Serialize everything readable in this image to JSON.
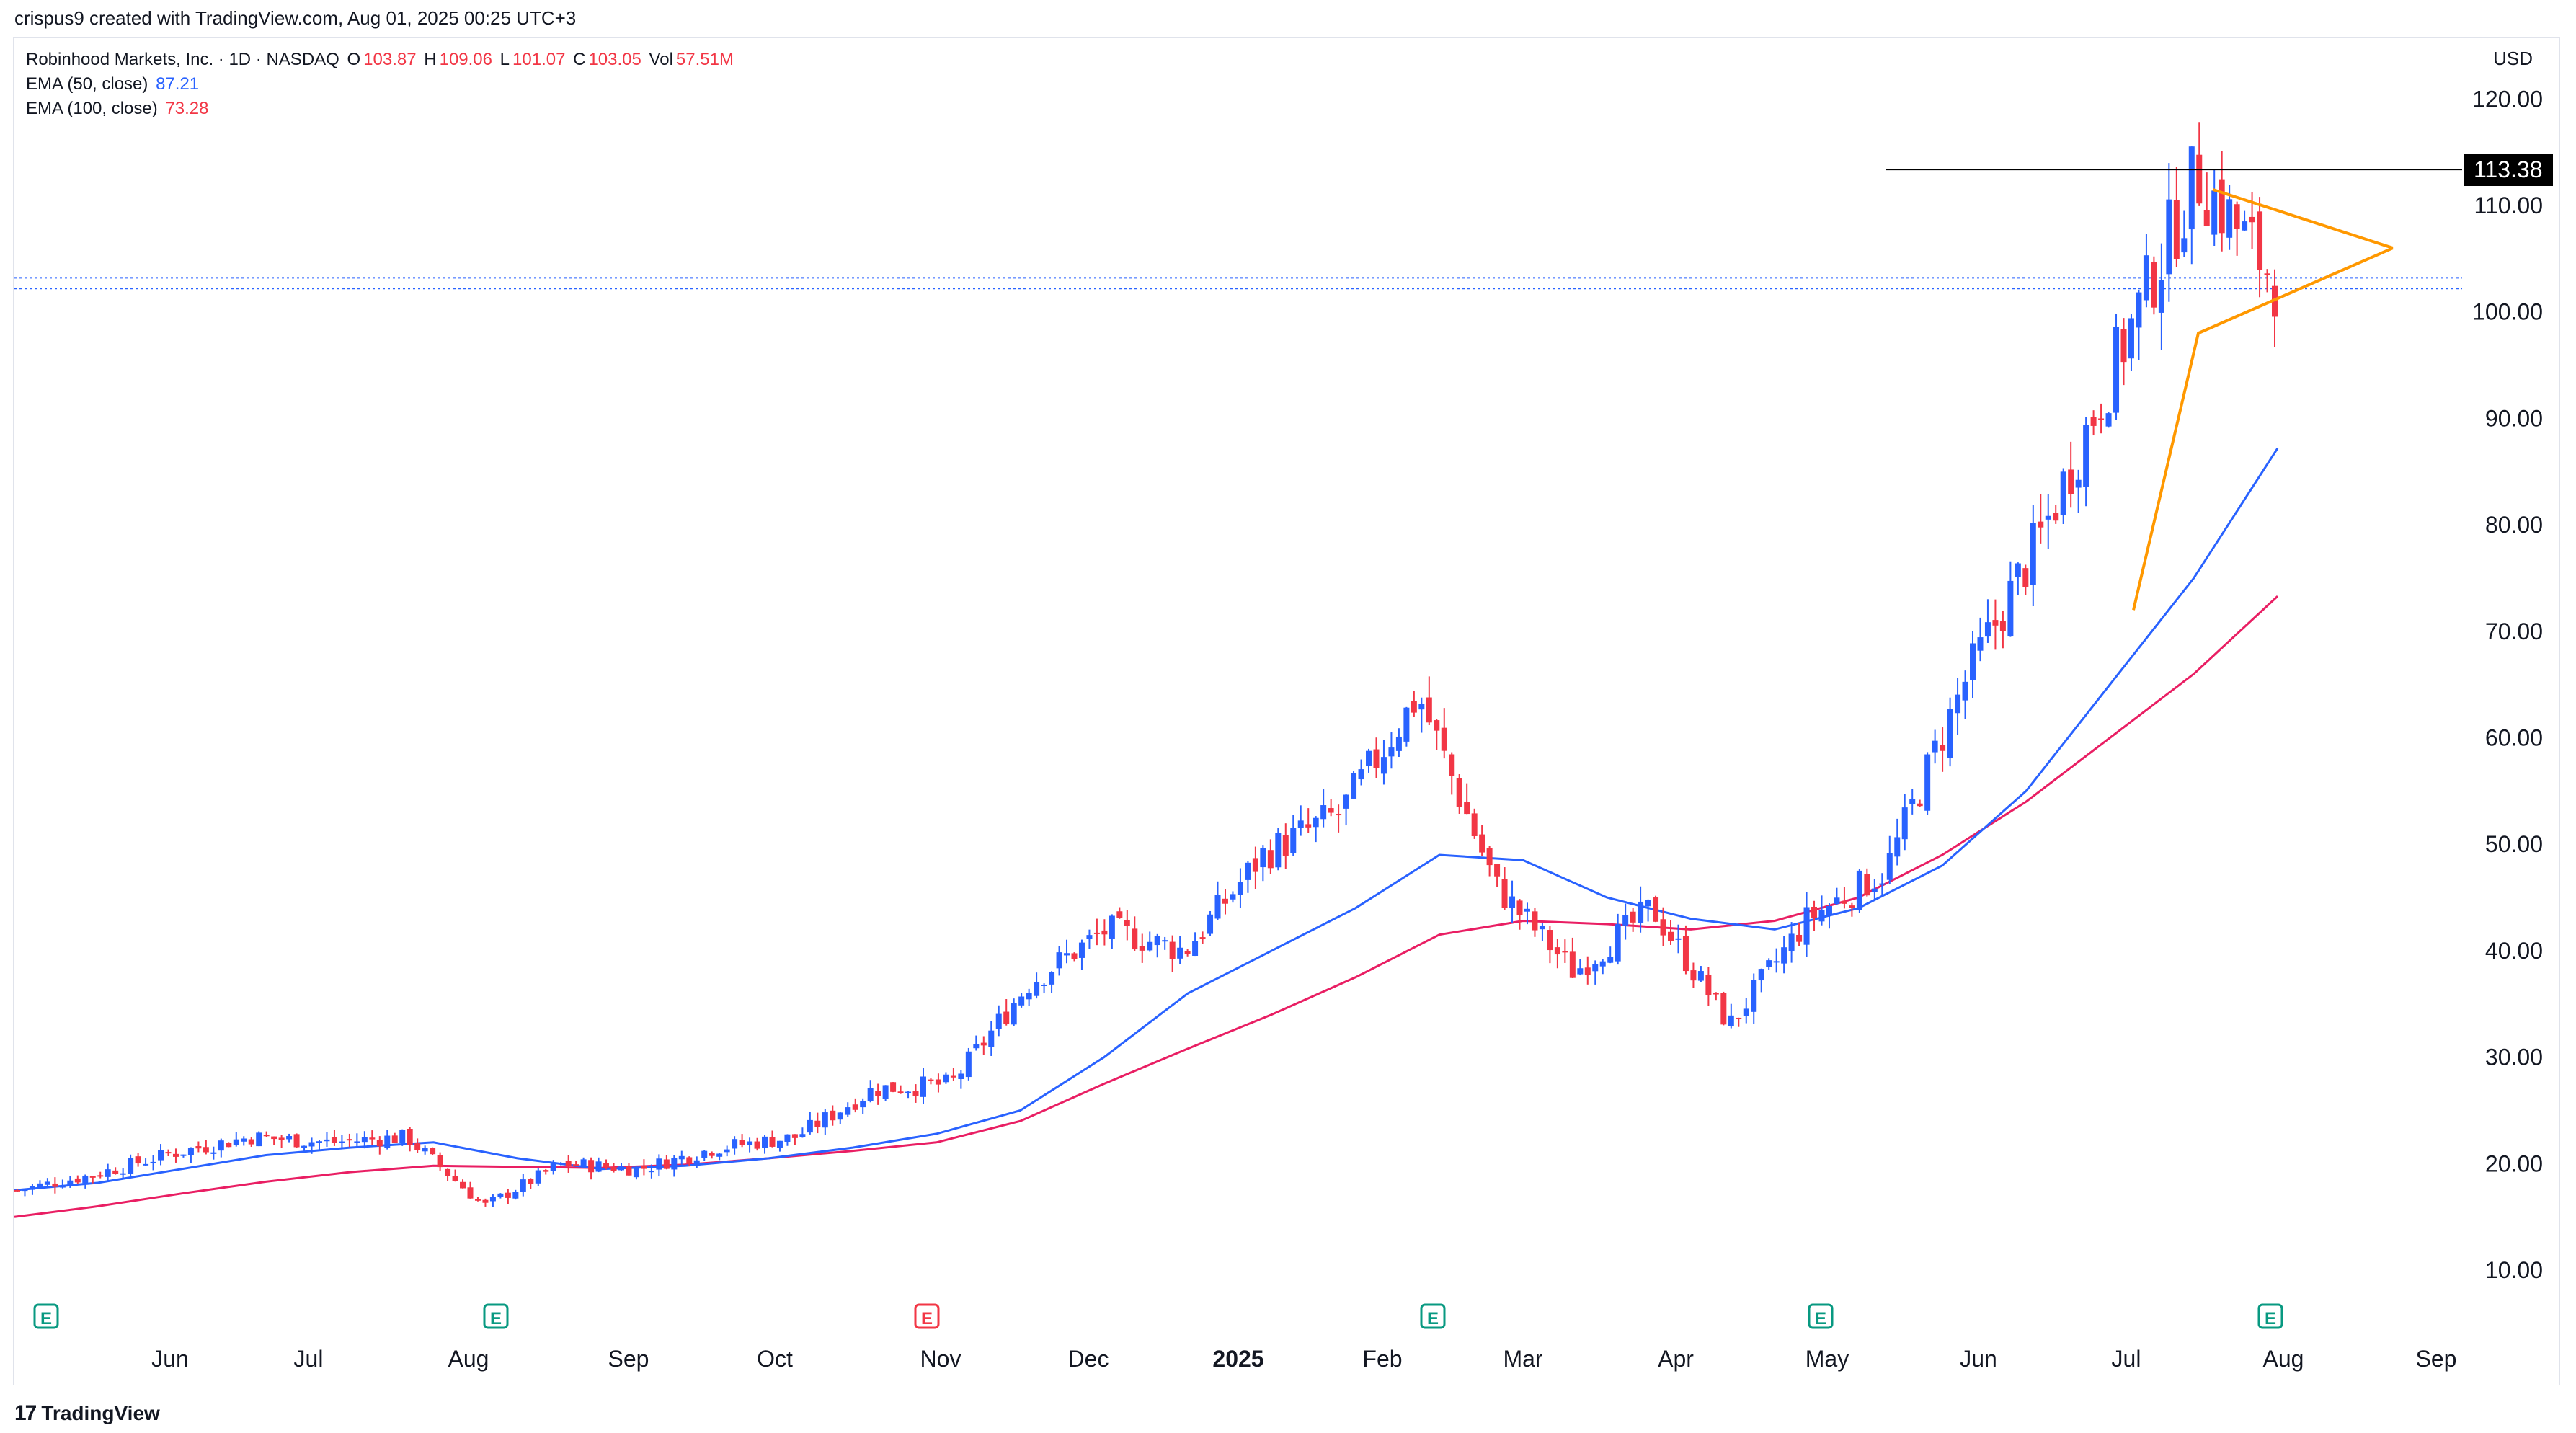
{
  "header": {
    "attribution": "crispus9 created with TradingView.com, Aug 01, 2025 00:25 UTC+3"
  },
  "legend": {
    "symbol": "Robinhood Markets, Inc. · 1D · NASDAQ",
    "o_label": "O",
    "o_value": "103.87",
    "h_label": "H",
    "h_value": "109.06",
    "l_label": "L",
    "l_value": "101.07",
    "c_label": "C",
    "c_value": "103.05",
    "vol_label": "Vol",
    "vol_value": "57.51M",
    "ema50_label": "EMA (50, close)",
    "ema50_value": "87.21",
    "ema100_label": "EMA (100, close)",
    "ema100_value": "73.28"
  },
  "currency": "USD",
  "resistance_label": "113.38",
  "footer": {
    "brand": "TradingView"
  },
  "colors": {
    "up": "#2962ff",
    "down": "#f23645",
    "ema50": "#2962ff",
    "ema100": "#e91e63",
    "pattern": "#ff9800",
    "resistance": "#000000"
  },
  "chart_data": {
    "type": "candlestick",
    "symbol": "HOOD",
    "ylim": [
      5,
      125
    ],
    "y_ticks": [
      10,
      20,
      30,
      40,
      50,
      60,
      70,
      80,
      90,
      100,
      110,
      120
    ],
    "x_ticks": [
      "Jun",
      "Jul",
      "Aug",
      "Sep",
      "Oct",
      "Nov",
      "Dec",
      "2025",
      "Feb",
      "Mar",
      "Apr",
      "May",
      "Jun",
      "Jul",
      "Aug",
      "Sep"
    ],
    "earnings_markers": [
      "E",
      "E",
      "E",
      "E",
      "E",
      "E"
    ],
    "ema50": [
      17.5,
      18.2,
      19.5,
      20.8,
      21.5,
      22.0,
      20.5,
      19.5,
      19.8,
      20.5,
      21.5,
      22.8,
      25.0,
      30.0,
      36.0,
      40.0,
      44.0,
      49.0,
      48.5,
      45.0,
      43.0,
      42.0,
      44.0,
      48.0,
      55.0,
      65.0,
      75.0,
      87.2
    ],
    "ema100": [
      15.0,
      16.0,
      17.2,
      18.3,
      19.2,
      19.8,
      19.7,
      19.6,
      19.9,
      20.5,
      21.2,
      22.0,
      24.0,
      27.5,
      30.8,
      34.0,
      37.5,
      41.5,
      42.8,
      42.5,
      42.0,
      42.8,
      45.0,
      49.0,
      54.0,
      60.0,
      66.0,
      73.3
    ],
    "closes": [
      17.5,
      19.0,
      21.0,
      22.5,
      22.0,
      22.5,
      16.0,
      20.0,
      19.5,
      21.5,
      22.5,
      27.0,
      27.5,
      37.0,
      42.0,
      40.0,
      49.0,
      53.0,
      64.0,
      46.0,
      38.0,
      44.0,
      33.0,
      43.0,
      47.5,
      65.0,
      79.0,
      96.0,
      113.0,
      103.05
    ],
    "resistance": 113.38,
    "pattern": "symmetrical triangle (pennant)"
  }
}
